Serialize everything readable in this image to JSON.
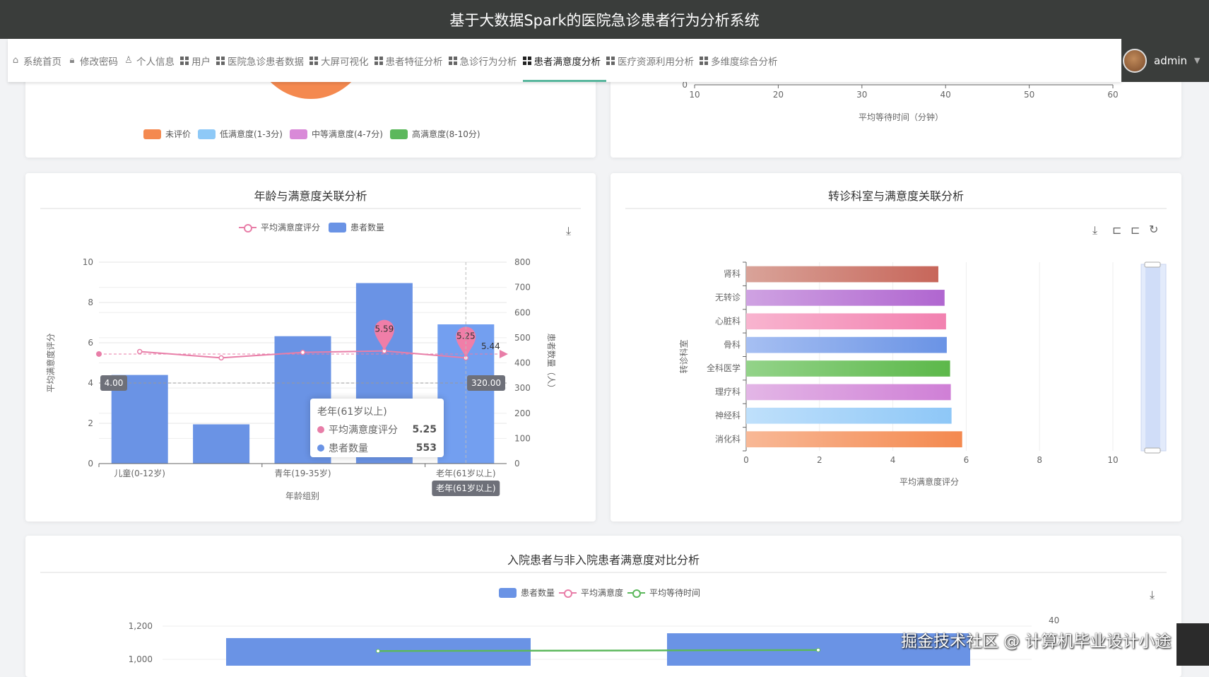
{
  "header": {
    "title": "基于大数据Spark的医院急诊患者行为分析系统"
  },
  "nav": {
    "items": [
      {
        "label": "系统首页",
        "icon": "home-icon"
      },
      {
        "label": "修改密码",
        "icon": "lock-icon"
      },
      {
        "label": "个人信息",
        "icon": "user-icon"
      },
      {
        "label": "用户",
        "icon": "grid-icon"
      },
      {
        "label": "医院急诊患者数据",
        "icon": "grid-icon"
      },
      {
        "label": "大屏可视化",
        "icon": "grid-icon"
      },
      {
        "label": "患者特征分析",
        "icon": "grid-icon"
      },
      {
        "label": "急诊行为分析",
        "icon": "grid-icon"
      },
      {
        "label": "患者满意度分析",
        "icon": "grid-icon",
        "active": true
      },
      {
        "label": "医疗资源利用分析",
        "icon": "grid-icon"
      },
      {
        "label": "多维度综合分析",
        "icon": "grid-icon"
      }
    ],
    "user": "admin"
  },
  "colors": {
    "accent": "#5ab79e",
    "bar_blue": "#6a93e5",
    "line_pink": "#e87ea8",
    "green": "#5cb85c",
    "orange": "#f4894f"
  },
  "pie_card": {
    "legend": [
      {
        "label": "未评价",
        "color": "#f4894f"
      },
      {
        "label": "低满意度(1-3分)",
        "color": "#8ec9f7"
      },
      {
        "label": "中等满意度(4-7分)",
        "color": "#d98ad8"
      },
      {
        "label": "高满意度(8-10分)",
        "color": "#5cb85c"
      }
    ]
  },
  "wait_card": {
    "chart_data": {
      "type": "scatter",
      "xlabel": "平均等待时间（分钟）",
      "xticks": [
        "10",
        "20",
        "30",
        "40",
        "50",
        "60"
      ],
      "yticks_visible": [
        "0"
      ],
      "xlim": [
        10,
        60
      ]
    }
  },
  "age_card": {
    "title": "年龄与满意度关联分析",
    "toolbox": [
      "download-icon"
    ],
    "chart_data": {
      "type": "bar+line",
      "legend": [
        "平均满意度评分",
        "患者数量"
      ],
      "categories": [
        "儿童(0-12岁)",
        "",
        "青年(19-35岁)",
        "",
        "老年(61岁以上)"
      ],
      "series": [
        {
          "name": "患者数量",
          "type": "bar",
          "axis": "right",
          "values": [
            352,
            156,
            506,
            717,
            553
          ]
        },
        {
          "name": "平均满意度评分",
          "type": "line",
          "axis": "left",
          "values": [
            5.56,
            5.25,
            5.52,
            5.59,
            5.25
          ]
        }
      ],
      "mark_points": [
        {
          "label": "5.59",
          "index": 3
        },
        {
          "label": "5.25",
          "index": 4
        }
      ],
      "mark_line": {
        "label": "5.44",
        "value": 5.44
      },
      "xlabel": "年龄组别",
      "ylabel_left": "平均满意度评分",
      "ylabel_right": "患者数量（人）",
      "ylim_left": [
        0,
        10
      ],
      "ylim_right": [
        0,
        800
      ],
      "yticks_left": [
        "0",
        "2",
        "4",
        "6",
        "8",
        "10"
      ],
      "yticks_right": [
        "0",
        "100",
        "200",
        "300",
        "400",
        "500",
        "600",
        "700",
        "800"
      ],
      "axis_pointer": {
        "left_label": "4.00",
        "right_label": "320.00",
        "x_label": "老年(61岁以上)"
      },
      "tooltip": {
        "title": "老年(61岁以上)",
        "rows": [
          {
            "name": "平均满意度评分",
            "value": "5.25",
            "color": "#e87ea8"
          },
          {
            "name": "患者数量",
            "value": "553",
            "color": "#6a93e5"
          }
        ]
      }
    }
  },
  "dept_card": {
    "title": "转诊科室与满意度关联分析",
    "toolbox": [
      "download-icon",
      "zoom-icon",
      "zoom-reset-icon",
      "restore-icon"
    ],
    "chart_data": {
      "type": "bar",
      "orientation": "horizontal",
      "categories": [
        "肾科",
        "无转诊",
        "心脏科",
        "骨科",
        "全科医学",
        "理疗科",
        "神经科",
        "消化科"
      ],
      "values": [
        5.24,
        5.41,
        5.45,
        5.47,
        5.56,
        5.58,
        5.6,
        5.89
      ],
      "colors": [
        [
          "#d9a399",
          "#c7665a"
        ],
        [
          "#cfa2e2",
          "#b066d0"
        ],
        [
          "#f8b4cf",
          "#f281b0"
        ],
        [
          "#a6bff2",
          "#6a93e5"
        ],
        [
          "#93d389",
          "#5cb84a"
        ],
        [
          "#e3b6e6",
          "#cf7fd6"
        ],
        [
          "#bfe0fb",
          "#8ec7f7"
        ],
        [
          "#f8b896",
          "#f4894f"
        ]
      ],
      "xlabel": "平均满意度评分",
      "ylabel": "转诊科室",
      "xlim": [
        0,
        10
      ],
      "xticks": [
        "0",
        "2",
        "4",
        "6",
        "8",
        "10"
      ]
    }
  },
  "admit_card": {
    "title": "入院患者与非入院患者满意度对比分析",
    "toolbox": [
      "download-icon"
    ],
    "chart_data": {
      "type": "bar+line",
      "legend": [
        "患者数量",
        "平均满意度",
        "平均等待时间"
      ],
      "series": [
        {
          "name": "患者数量",
          "type": "bar",
          "values": [
            1128,
            1157
          ]
        },
        {
          "name": "平均等待时间",
          "type": "line",
          "axis": "right",
          "values": [
            35,
            35.2
          ]
        }
      ],
      "yticks_left": [
        "1,200",
        "1,000"
      ],
      "yticks_right": [
        "40"
      ]
    }
  },
  "watermark": "掘金技术社区 @ 计算机毕业设计小途"
}
